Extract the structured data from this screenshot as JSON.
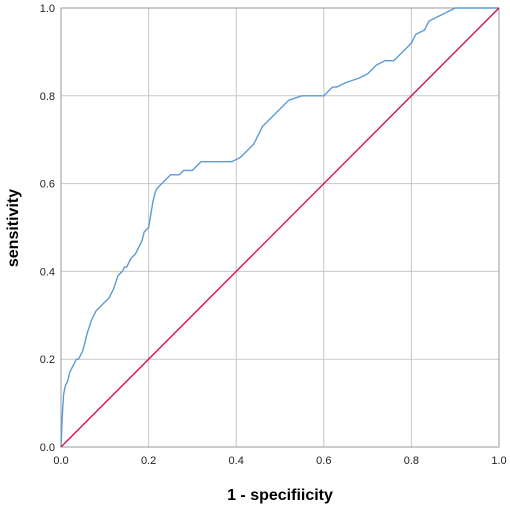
{
  "chart_data": {
    "type": "line",
    "title": "",
    "xlabel": "1 - specifiicity",
    "ylabel": "sensitivity",
    "xlim": [
      0,
      1
    ],
    "ylim": [
      0,
      1
    ],
    "grid": true,
    "legend": "none",
    "x_ticks": [
      "0.0",
      "0.2",
      "0.4",
      "0.6",
      "0.8",
      "1.0"
    ],
    "y_ticks": [
      "0.0",
      "0.2",
      "0.4",
      "0.6",
      "0.8",
      "1.0"
    ],
    "series": [
      {
        "color": "#5b9bd5",
        "x": [
          0,
          0.002,
          0.004,
          0.006,
          0.01,
          0.015,
          0.02,
          0.03,
          0.035,
          0.04,
          0.05,
          0.06,
          0.07,
          0.075,
          0.08,
          0.09,
          0.1,
          0.11,
          0.12,
          0.13,
          0.14,
          0.145,
          0.15,
          0.16,
          0.17,
          0.18,
          0.185,
          0.19,
          0.2,
          0.205,
          0.21,
          0.215,
          0.22,
          0.23,
          0.24,
          0.25,
          0.27,
          0.28,
          0.3,
          0.32,
          0.33,
          0.36,
          0.39,
          0.41,
          0.42,
          0.44,
          0.45,
          0.46,
          0.47,
          0.48,
          0.5,
          0.52,
          0.55,
          0.58,
          0.6,
          0.62,
          0.63,
          0.65,
          0.68,
          0.7,
          0.72,
          0.74,
          0.76,
          0.78,
          0.8,
          0.81,
          0.83,
          0.84,
          0.86,
          0.88,
          0.9,
          0.92,
          0.95,
          1.0
        ],
        "y": [
          0,
          0.05,
          0.09,
          0.12,
          0.14,
          0.15,
          0.17,
          0.19,
          0.2,
          0.2,
          0.22,
          0.26,
          0.29,
          0.3,
          0.31,
          0.32,
          0.33,
          0.34,
          0.36,
          0.39,
          0.4,
          0.41,
          0.41,
          0.43,
          0.44,
          0.46,
          0.47,
          0.49,
          0.5,
          0.53,
          0.56,
          0.58,
          0.59,
          0.6,
          0.61,
          0.62,
          0.62,
          0.63,
          0.63,
          0.65,
          0.65,
          0.65,
          0.65,
          0.66,
          0.67,
          0.69,
          0.71,
          0.73,
          0.74,
          0.75,
          0.77,
          0.79,
          0.8,
          0.8,
          0.8,
          0.82,
          0.82,
          0.83,
          0.84,
          0.85,
          0.87,
          0.88,
          0.88,
          0.9,
          0.92,
          0.94,
          0.95,
          0.97,
          0.98,
          0.99,
          1.0,
          1.0,
          1.0,
          1.0
        ]
      },
      {
        "color": "#d6134b",
        "x": [
          0,
          1
        ],
        "y": [
          0,
          1
        ]
      }
    ]
  }
}
